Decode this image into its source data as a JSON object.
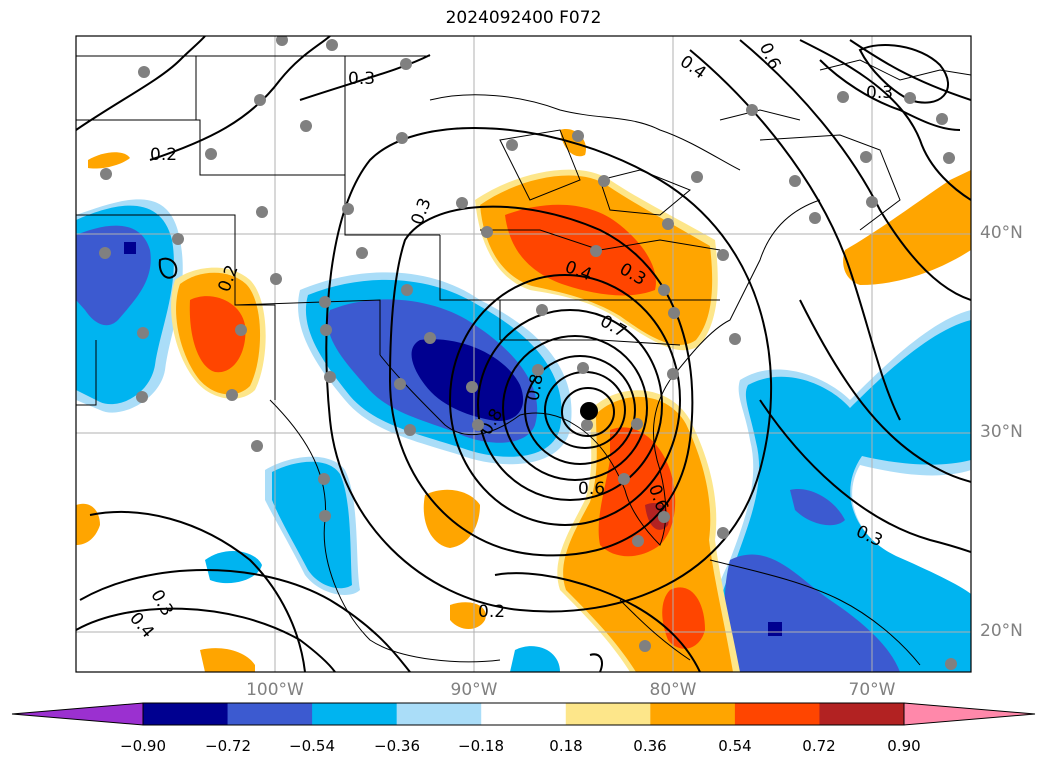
{
  "title": "2024092400 F072",
  "lat_labels": [
    "40°N",
    "30°N",
    "20°N"
  ],
  "lon_labels": [
    "100°W",
    "90°W",
    "80°W",
    "70°W"
  ],
  "colorbar": {
    "ticks": [
      "−0.90",
      "−0.72",
      "−0.54",
      "−0.36",
      "−0.18",
      "0.18",
      "0.36",
      "0.54",
      "0.72",
      "0.90"
    ],
    "colors": [
      "#9b30d0",
      "#000090",
      "#3c5ad0",
      "#00b4f0",
      "#aaddf8",
      "#ffffff",
      "#fde68a",
      "#ffa500",
      "#ff4500",
      "#b22222",
      "#ff88aa"
    ]
  },
  "contour_labels": [
    "0.3",
    "0.2",
    "0.3",
    "0.2",
    "0.4",
    "0.6",
    "0.6",
    "0.4",
    "0.3",
    "0.8",
    "0.7",
    "0.6",
    "0.3",
    "0.2",
    "0.3",
    "0.4",
    "0.3",
    "0.8"
  ],
  "colors": {
    "gray_station": "#808080",
    "storm_center": "#000000"
  }
}
